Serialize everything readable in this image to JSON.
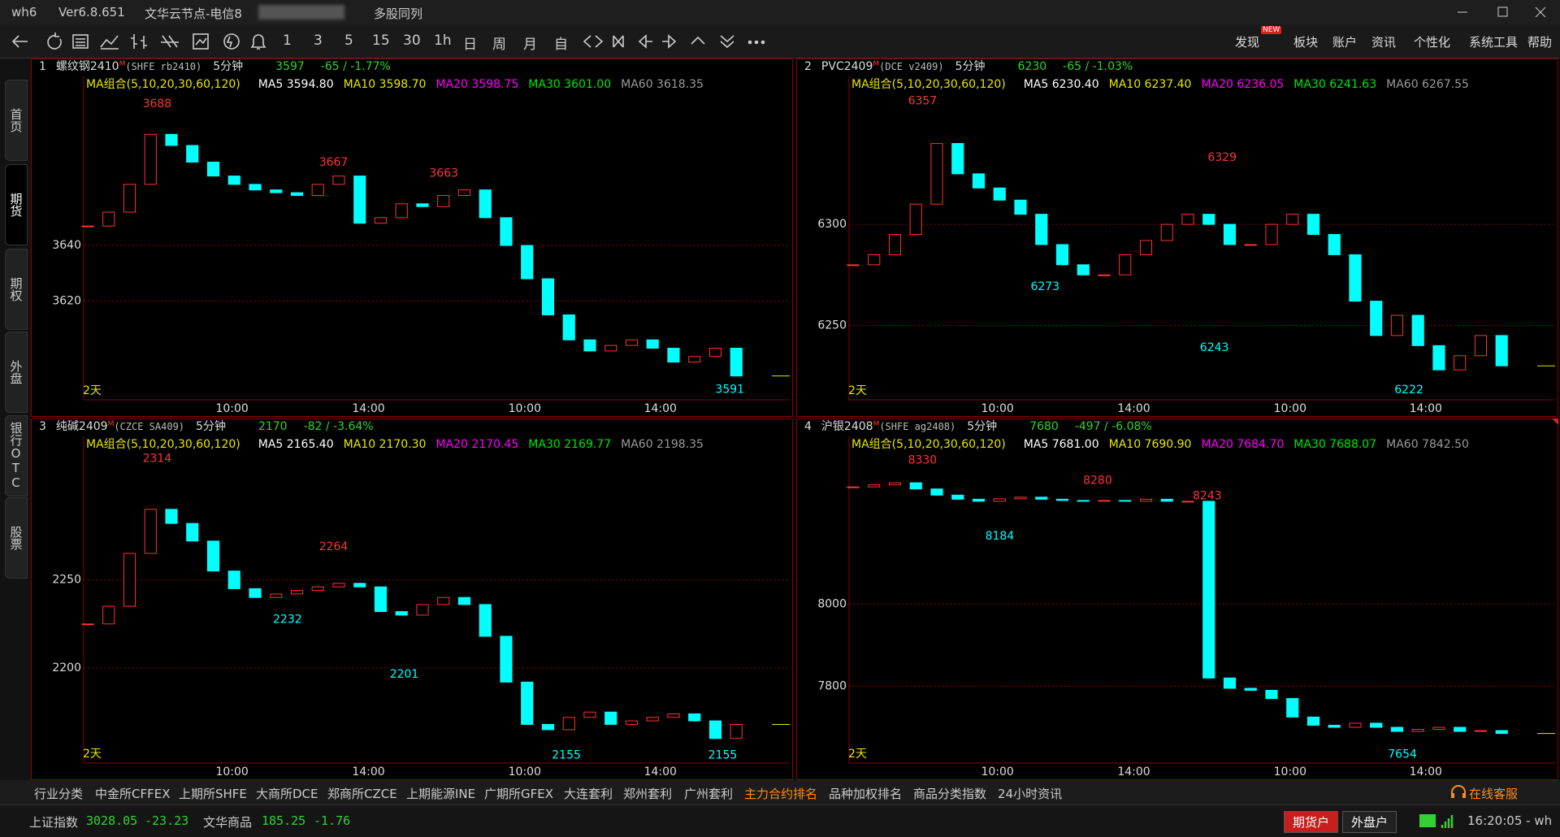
{
  "title_bar": {
    "app": "wh6",
    "version": "Ver6.8.651",
    "node": "文华云节点-电信8",
    "mode": "多股同列"
  },
  "toolbar": {
    "periods": [
      "1",
      "3",
      "5",
      "15",
      "30",
      "1h",
      "日",
      "周",
      "月",
      "自"
    ],
    "menu": [
      "发现",
      "板块",
      "账户",
      "资讯",
      "个性化",
      "系统工具",
      "帮助"
    ],
    "badge": "NEW"
  },
  "sidebar": [
    "首页",
    "期货",
    "期权",
    "外盘",
    "银行OTC",
    "股票"
  ],
  "time_axis": [
    "10:00",
    "14:00",
    "10:00",
    "14:00"
  ],
  "range_label": "2天",
  "panels": [
    {
      "index": 1,
      "name": "螺纹钢2410",
      "flag": "M",
      "code": "(SHFE rb2410)",
      "period": "5分钟",
      "price": "3597",
      "change": "-65 / -1.77%",
      "ma_group": "MA组合(5,10,20,30,60,120)",
      "ma": [
        "MA5 3594.80",
        "MA10 3598.70",
        "MA20 3598.75",
        "MA30 3601.00",
        "MA60 3618.35"
      ],
      "ylim": [
        3585,
        3700
      ],
      "yticks": [
        3620,
        3640
      ],
      "closes": [
        3647,
        3652,
        3662,
        3680,
        3676,
        3670,
        3665,
        3662,
        3660,
        3659,
        3658,
        3662,
        3665,
        3648,
        3650,
        3655,
        3654,
        3658,
        3660,
        3650,
        3640,
        3628,
        3615,
        3606,
        3602,
        3604,
        3606,
        3603,
        3598,
        3600,
        3603,
        3593
      ],
      "highs": [
        3688,
        3667,
        3663
      ],
      "lows": [
        3591
      ]
    },
    {
      "index": 2,
      "name": "PVC2409",
      "flag": "M",
      "code": "(DCE v2409)",
      "period": "5分钟",
      "price": "6230",
      "change": "-65 / -1.03%",
      "ma_group": "MA组合(5,10,20,30,60,120)",
      "ma": [
        "MA5 6230.40",
        "MA10 6237.40",
        "MA20 6236.05",
        "MA30 6241.63",
        "MA60 6267.55"
      ],
      "ylim": [
        6214,
        6372
      ],
      "yticks": [
        6250,
        6300
      ],
      "closes": [
        6280,
        6285,
        6295,
        6310,
        6340,
        6325,
        6318,
        6312,
        6305,
        6290,
        6280,
        6275,
        6275,
        6285,
        6292,
        6300,
        6305,
        6300,
        6290,
        6290,
        6300,
        6305,
        6295,
        6285,
        6262,
        6245,
        6255,
        6240,
        6228,
        6235,
        6245,
        6230
      ],
      "highs": [
        6357,
        6329
      ],
      "lows": [
        6273,
        6243,
        6222
      ]
    },
    {
      "index": 3,
      "name": "纯碱2409",
      "flag": "M",
      "code": "(CZCE SA409)",
      "period": "5分钟",
      "price": "2170",
      "change": "-82 / -3.64%",
      "ma_group": "MA组合(5,10,20,30,60,120)",
      "ma": [
        "MA5 2165.40",
        "MA10 2170.30",
        "MA20 2170.45",
        "MA30 2169.77",
        "MA60 2198.35"
      ],
      "ylim": [
        2147,
        2330
      ],
      "yticks": [
        2200,
        2250
      ],
      "closes": [
        2225,
        2235,
        2265,
        2290,
        2282,
        2272,
        2255,
        2245,
        2240,
        2242,
        2244,
        2246,
        2248,
        2246,
        2232,
        2230,
        2236,
        2240,
        2236,
        2218,
        2192,
        2168,
        2165,
        2172,
        2175,
        2168,
        2170,
        2172,
        2174,
        2170,
        2160,
        2168
      ],
      "highs": [
        2314,
        2264
      ],
      "lows": [
        2232,
        2201,
        2155,
        2155
      ]
    },
    {
      "index": 4,
      "name": "沪银2408",
      "flag": "M",
      "code": "(SHFE ag2408)",
      "period": "5分钟",
      "price": "7680",
      "change": "-497 / -6.08%",
      "ma_group": "MA组合(5,10,20,30,60,120)",
      "ma": [
        "MA5 7681.00",
        "MA10 7690.90",
        "MA20 7684.70",
        "MA30 7688.07",
        "MA60 7842.50"
      ],
      "ylim": [
        7617,
        8402
      ],
      "yticks": [
        7800,
        8000
      ],
      "closes": [
        8285,
        8290,
        8295,
        8280,
        8265,
        8255,
        8250,
        8256,
        8260,
        8255,
        8252,
        8250,
        8252,
        8250,
        8255,
        8250,
        8250,
        7820,
        7795,
        7790,
        7770,
        7725,
        7705,
        7700,
        7710,
        7700,
        7690,
        7695,
        7700,
        7690,
        7692,
        7685
      ],
      "highs": [
        8330,
        8280,
        8243
      ],
      "lows": [
        8184,
        7654
      ]
    }
  ],
  "bottom_tabs": [
    "行业分类",
    "中金所CFFEX",
    "上期所SHFE",
    "大商所DCE",
    "郑商所CZCE",
    "上期能源INE",
    "广期所GFEX",
    "大连套利",
    "郑州套利",
    "广州套利",
    "主力合约排名",
    "品种加权排名",
    "商品分类指数",
    "24小时资讯"
  ],
  "service": "在线客服",
  "status": {
    "indices": [
      {
        "name": "上证指数",
        "value": "3028.05",
        "change": "-23.23"
      },
      {
        "name": "文华商品",
        "value": "185.25",
        "change": "-1.76"
      }
    ],
    "accounts": [
      "期货户",
      "外盘户"
    ],
    "clock": "16:20:05 - wh"
  }
}
